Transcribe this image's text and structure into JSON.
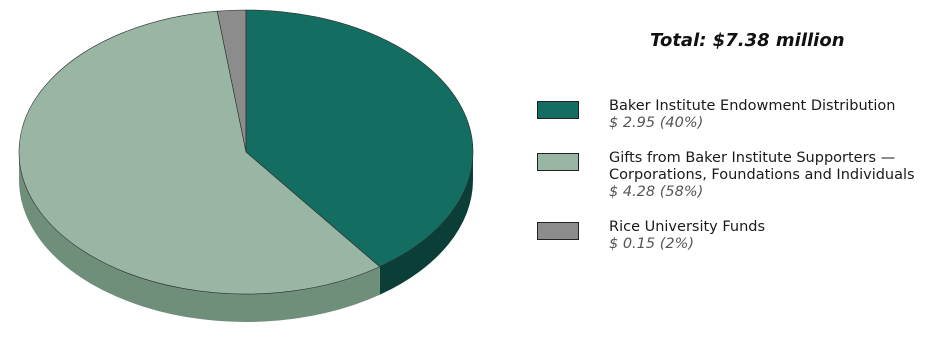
{
  "chart_data": {
    "type": "pie",
    "title": "",
    "total_label": "Total: $7.38 million",
    "slices": [
      {
        "label": "Baker Institute Endowment Distribution",
        "value": 2.95,
        "percent": 40,
        "display": "$ 2.95 (40%)",
        "color": "#146d61",
        "side_color": "#0b3e36"
      },
      {
        "label": "Gifts from Baker Institute Supporters —\nCorporations, Foundations and Individuals",
        "value": 4.28,
        "percent": 58,
        "display": "$ 4.28 (58%)",
        "color": "#98b6a3",
        "side_color": "#6f8f7a"
      },
      {
        "label": "Rice University Funds",
        "value": 0.15,
        "percent": 2,
        "display": "$ 0.15 (2%)",
        "color": "#8c8c8c",
        "side_color": "#5e5e5e"
      }
    ],
    "legend_placement": "right",
    "projection": "3d"
  }
}
